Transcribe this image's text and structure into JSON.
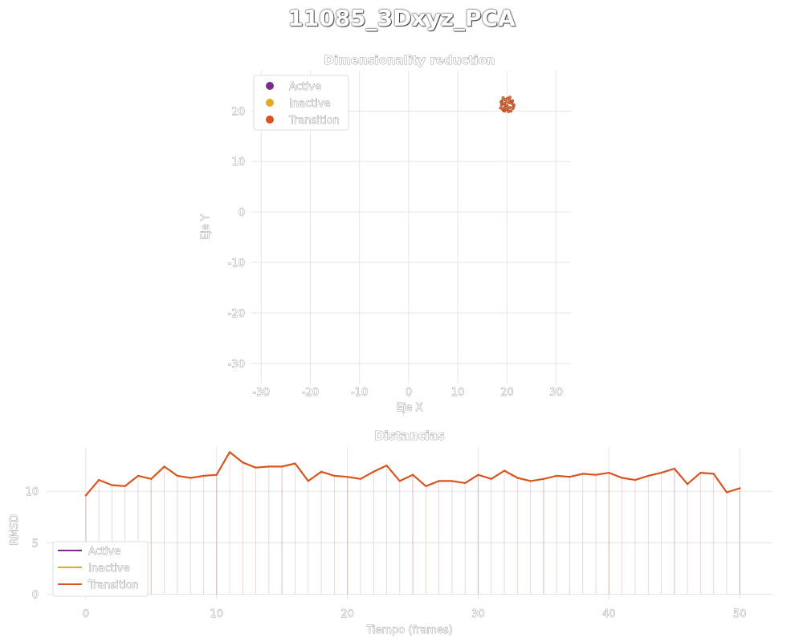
{
  "figure": {
    "title": "11085_3Dxyz_PCA"
  },
  "colors": {
    "active": "#7b2d8e",
    "inactive": "#e8a628",
    "transition": "#d9541e",
    "grid": "#e5e5e5"
  },
  "chart_data": [
    {
      "type": "scatter",
      "title": "Dimensionality reduction",
      "xlabel": "Eje X",
      "ylabel": "Eje Y",
      "xlim": [
        -32,
        33
      ],
      "ylim": [
        -34,
        28
      ],
      "xticks": [
        -30,
        -20,
        -10,
        0,
        10,
        20,
        30
      ],
      "yticks": [
        -30,
        -20,
        -10,
        0,
        10,
        20
      ],
      "grid": true,
      "legend": {
        "position": "top-left",
        "entries": [
          "Active",
          "Inactive",
          "Transition"
        ]
      },
      "series": [
        {
          "name": "Transition",
          "points": [
            [
              19.2,
              22.6
            ],
            [
              19.8,
              21.8
            ],
            [
              20.5,
              22.1
            ],
            [
              18.9,
              21.2
            ],
            [
              19.5,
              20.7
            ],
            [
              20.2,
              20.4
            ],
            [
              21.0,
              21.5
            ],
            [
              19.3,
              20.1
            ],
            [
              20.8,
              20.0
            ],
            [
              19.0,
              22.0
            ],
            [
              20.0,
              21.0
            ],
            [
              21.3,
              20.9
            ],
            [
              18.7,
              20.6
            ],
            [
              19.6,
              22.3
            ],
            [
              20.4,
              21.6
            ],
            [
              19.9,
              20.3
            ],
            [
              21.1,
              22.0
            ],
            [
              18.8,
              21.8
            ],
            [
              20.6,
              20.7
            ],
            [
              19.4,
              21.4
            ],
            [
              20.1,
              22.5
            ],
            [
              21.4,
              21.2
            ],
            [
              19.1,
              20.4
            ],
            [
              20.3,
              19.9
            ],
            [
              19.7,
              21.1
            ],
            [
              20.9,
              21.9
            ],
            [
              19.0,
              21.5
            ],
            [
              20.6,
              22.7
            ],
            [
              19.5,
              20.0
            ],
            [
              21.2,
              20.5
            ]
          ]
        }
      ]
    },
    {
      "type": "line",
      "title": "Distancias",
      "xlabel": "Tiempo (frames)",
      "ylabel": "RMSD",
      "xlim": [
        -3,
        52.5
      ],
      "ylim": [
        -0.5,
        14.3
      ],
      "xticks": [
        0,
        10,
        20,
        30,
        40,
        50
      ],
      "yticks": [
        0,
        5,
        10
      ],
      "grid": true,
      "legend": {
        "position": "bottom-left",
        "entries": [
          "Active",
          "Inactive",
          "Transition"
        ]
      },
      "x": [
        0,
        1,
        2,
        3,
        4,
        5,
        6,
        7,
        8,
        9,
        10,
        11,
        12,
        13,
        14,
        15,
        16,
        17,
        18,
        19,
        20,
        21,
        22,
        23,
        24,
        25,
        26,
        27,
        28,
        29,
        30,
        31,
        32,
        33,
        34,
        35,
        36,
        37,
        38,
        39,
        40,
        41,
        42,
        43,
        44,
        45,
        46,
        47,
        48,
        49,
        50
      ],
      "series": [
        {
          "name": "Transition",
          "values": [
            9.6,
            11.1,
            10.6,
            10.5,
            11.5,
            11.2,
            12.4,
            11.5,
            11.3,
            11.5,
            11.6,
            13.8,
            12.8,
            12.3,
            12.4,
            12.4,
            12.7,
            11.0,
            11.9,
            11.5,
            11.4,
            11.2,
            11.9,
            12.5,
            11.0,
            11.6,
            10.5,
            11.0,
            11.0,
            10.8,
            11.6,
            11.2,
            12.0,
            11.3,
            11.0,
            11.2,
            11.5,
            11.4,
            11.7,
            11.6,
            11.8,
            11.3,
            11.1,
            11.5,
            11.8,
            12.2,
            10.7,
            11.8,
            11.7,
            9.9,
            10.3
          ]
        }
      ]
    }
  ]
}
